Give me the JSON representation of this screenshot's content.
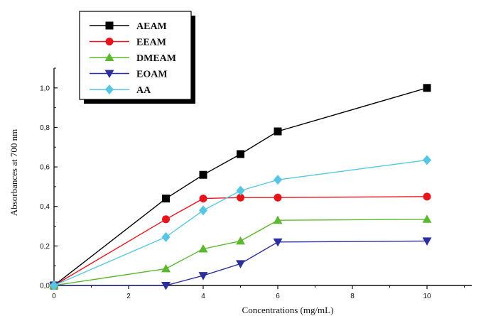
{
  "chart_data": {
    "type": "line",
    "title": "",
    "xlabel": "Concentrations (mg/mL)",
    "ylabel": "Absorbances at 700 nm",
    "xlim": [
      0,
      11.2
    ],
    "ylim": [
      0,
      1.1
    ],
    "xticks": [
      {
        "value": 0,
        "label": "0"
      },
      {
        "value": 2,
        "label": "2"
      },
      {
        "value": 4,
        "label": "4"
      },
      {
        "value": 6,
        "label": "6"
      },
      {
        "value": 8,
        "label": "8"
      },
      {
        "value": 10,
        "label": "10"
      }
    ],
    "yticks": [
      {
        "value": 0,
        "label": "0,0"
      },
      {
        "value": 0.2,
        "label": "0,2"
      },
      {
        "value": 0.4,
        "label": "0,4"
      },
      {
        "value": 0.6,
        "label": "0,6"
      },
      {
        "value": 0.8,
        "label": "0,8"
      },
      {
        "value": 1.0,
        "label": "1,0"
      }
    ],
    "grid": false,
    "legend_position": "top-left",
    "x": [
      0,
      3,
      4,
      5,
      6,
      10
    ],
    "series": [
      {
        "name": "AEAM",
        "color": "#000000",
        "marker": "square",
        "values": [
          0.0,
          0.44,
          0.56,
          0.665,
          0.78,
          1.0
        ]
      },
      {
        "name": "EEAM",
        "color": "#e8141c",
        "marker": "circle",
        "values": [
          0.0,
          0.335,
          0.44,
          0.445,
          0.445,
          0.45
        ]
      },
      {
        "name": "DMEAM",
        "color": "#5cb82e",
        "marker": "triangle-up",
        "values": [
          0.0,
          0.085,
          0.185,
          0.225,
          0.33,
          0.335
        ]
      },
      {
        "name": "EOAM",
        "color": "#2b2f9e",
        "marker": "triangle-down",
        "values": [
          0.0,
          0.0,
          0.05,
          0.11,
          0.22,
          0.225
        ]
      },
      {
        "name": "AA",
        "color": "#56c6e3",
        "marker": "diamond",
        "values": [
          0.0,
          0.245,
          0.38,
          0.48,
          0.535,
          0.635
        ]
      }
    ]
  }
}
